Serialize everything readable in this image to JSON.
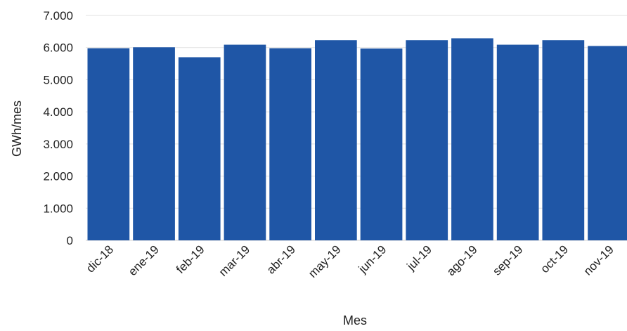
{
  "chart_data": {
    "type": "bar",
    "categories": [
      "dic-18",
      "ene-19",
      "feb-19",
      "mar-19",
      "abr-19",
      "may-19",
      "jun-19",
      "jul-19",
      "ago-19",
      "sep-19",
      "oct-19",
      "nov-19"
    ],
    "values": [
      5980,
      6010,
      5700,
      6090,
      5980,
      6230,
      5970,
      6230,
      6290,
      6090,
      6230,
      6050
    ],
    "xlabel": "Mes",
    "ylabel": "GWh/mes",
    "ylim": [
      0,
      7000
    ],
    "yticks": [
      "0",
      "1.000",
      "2.000",
      "3.000",
      "4.000",
      "5.000",
      "6.000",
      "7.000"
    ],
    "grid": true,
    "bar_color": "#1F56A6"
  }
}
